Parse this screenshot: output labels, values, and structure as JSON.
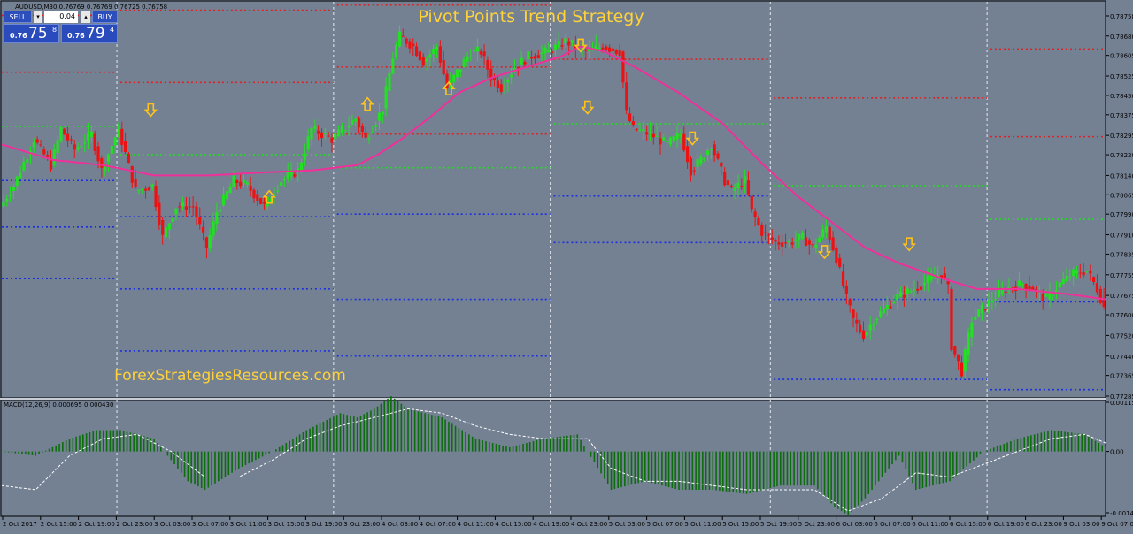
{
  "symbol_header": "AUDUSD,M30  0.76769 0.76769 0.76725 0.76758",
  "title": "Pivot Points Trend Strategy",
  "watermark": "ForexStrategiesResources.com",
  "macd_header": "MACD(12,26,9) 0.000695 0.000430",
  "colors": {
    "background": "#748193",
    "bull_candle": "#22e022",
    "bear_candle": "#ee1111",
    "ema": "#f0309a",
    "resistance": "#e02020",
    "pivot": "#22dd22",
    "support": "#1a2fe0",
    "arrow": "#ffc21a",
    "macd_hist": "#0b6d0b",
    "macd_signal": "#ffffff",
    "title": "#ffd23a"
  },
  "trade_panel": {
    "sell_label": "SELL",
    "buy_label": "BUY",
    "lot_size": "0.04",
    "spin_down": "▾",
    "spin_up": "▴",
    "sell_prefix": "0.76",
    "sell_big": "75",
    "sell_sup": "8",
    "buy_prefix": "0.76",
    "buy_big": "79",
    "buy_sup": "4"
  },
  "chart_data": {
    "type": "candlestick",
    "price_axis": [
      "0.78758",
      "0.78680",
      "0.78605",
      "0.78525",
      "0.78450",
      "0.78375",
      "0.78295",
      "0.78220",
      "0.78140",
      "0.78065",
      "0.77990",
      "0.77910",
      "0.77835",
      "0.77755",
      "0.77675",
      "0.77600",
      "0.77520",
      "0.77440",
      "0.77365",
      "0.77285"
    ],
    "macd_axis": [
      "0.001155",
      "0.00",
      "-0.00144"
    ],
    "time_axis": [
      "2 Oct 2017",
      "2 Oct 15:00",
      "2 Oct 19:00",
      "2 Oct 23:00",
      "3 Oct 03:00",
      "3 Oct 07:00",
      "3 Oct 11:00",
      "3 Oct 15:00",
      "3 Oct 19:00",
      "3 Oct 23:00",
      "4 Oct 03:00",
      "4 Oct 07:00",
      "4 Oct 11:00",
      "4 Oct 15:00",
      "4 Oct 19:00",
      "4 Oct 23:00",
      "5 Oct 03:00",
      "5 Oct 07:00",
      "5 Oct 11:00",
      "5 Oct 15:00",
      "5 Oct 19:00",
      "5 Oct 23:00",
      "6 Oct 03:00",
      "6 Oct 07:00",
      "6 Oct 11:00",
      "6 Oct 15:00",
      "6 Oct 19:00",
      "6 Oct 23:00",
      "9 Oct 03:00",
      "9 Oct 07:00"
    ],
    "day_separators": [
      "2 Oct 23:00",
      "3 Oct 23:00",
      "4 Oct 23:00",
      "5 Oct 23:00",
      "6 Oct 23:00"
    ],
    "price_path": [
      [
        0,
        0.7802
      ],
      [
        8,
        0.781
      ],
      [
        20,
        0.7828
      ],
      [
        30,
        0.7818
      ],
      [
        36,
        0.7832
      ],
      [
        44,
        0.7824
      ],
      [
        54,
        0.783
      ],
      [
        60,
        0.7816
      ],
      [
        70,
        0.7832
      ],
      [
        80,
        0.7808
      ],
      [
        90,
        0.781
      ],
      [
        96,
        0.779
      ],
      [
        104,
        0.7802
      ],
      [
        114,
        0.7802
      ],
      [
        122,
        0.7786
      ],
      [
        128,
        0.78
      ],
      [
        138,
        0.7812
      ],
      [
        146,
        0.781
      ],
      [
        156,
        0.7802
      ],
      [
        166,
        0.7812
      ],
      [
        176,
        0.7816
      ],
      [
        184,
        0.7832
      ],
      [
        196,
        0.7828
      ],
      [
        210,
        0.7836
      ],
      [
        216,
        0.7828
      ],
      [
        226,
        0.784
      ],
      [
        232,
        0.786
      ],
      [
        236,
        0.7868
      ],
      [
        244,
        0.7864
      ],
      [
        250,
        0.7858
      ],
      [
        258,
        0.7864
      ],
      [
        264,
        0.7848
      ],
      [
        272,
        0.7856
      ],
      [
        278,
        0.7862
      ],
      [
        284,
        0.7862
      ],
      [
        290,
        0.7852
      ],
      [
        296,
        0.7848
      ],
      [
        304,
        0.7856
      ],
      [
        312,
        0.786
      ],
      [
        324,
        0.7862
      ],
      [
        334,
        0.7866
      ],
      [
        346,
        0.7862
      ],
      [
        356,
        0.7864
      ],
      [
        366,
        0.7862
      ],
      [
        370,
        0.7838
      ],
      [
        374,
        0.7832
      ],
      [
        384,
        0.783
      ],
      [
        394,
        0.7826
      ],
      [
        402,
        0.783
      ],
      [
        408,
        0.7816
      ],
      [
        414,
        0.782
      ],
      [
        420,
        0.7826
      ],
      [
        428,
        0.7812
      ],
      [
        432,
        0.7808
      ],
      [
        440,
        0.7812
      ],
      [
        444,
        0.78
      ],
      [
        450,
        0.7792
      ],
      [
        458,
        0.7788
      ],
      [
        466,
        0.7788
      ],
      [
        474,
        0.779
      ],
      [
        480,
        0.7786
      ],
      [
        488,
        0.7794
      ],
      [
        494,
        0.7782
      ],
      [
        500,
        0.7766
      ],
      [
        504,
        0.7758
      ],
      [
        510,
        0.7752
      ],
      [
        516,
        0.7758
      ],
      [
        522,
        0.7762
      ],
      [
        530,
        0.7767
      ],
      [
        540,
        0.777
      ],
      [
        550,
        0.7774
      ],
      [
        556,
        0.7776
      ],
      [
        560,
        0.777
      ],
      [
        562,
        0.7748
      ],
      [
        568,
        0.7738
      ],
      [
        574,
        0.7758
      ],
      [
        580,
        0.7762
      ],
      [
        586,
        0.7766
      ],
      [
        594,
        0.777
      ],
      [
        604,
        0.7772
      ],
      [
        610,
        0.777
      ],
      [
        618,
        0.7766
      ],
      [
        626,
        0.7772
      ],
      [
        634,
        0.7776
      ],
      [
        642,
        0.7777
      ],
      [
        648,
        0.777
      ],
      [
        652,
        0.7763
      ]
    ],
    "ema_path": [
      [
        0,
        0.7826
      ],
      [
        30,
        0.782
      ],
      [
        60,
        0.7818
      ],
      [
        90,
        0.7814
      ],
      [
        122,
        0.7814
      ],
      [
        150,
        0.7815
      ],
      [
        184,
        0.7816
      ],
      [
        210,
        0.7818
      ],
      [
        222,
        0.7822
      ],
      [
        236,
        0.7828
      ],
      [
        252,
        0.7836
      ],
      [
        270,
        0.7846
      ],
      [
        290,
        0.7852
      ],
      [
        310,
        0.7856
      ],
      [
        330,
        0.786
      ],
      [
        342,
        0.7864
      ],
      [
        356,
        0.7862
      ],
      [
        374,
        0.7856
      ],
      [
        400,
        0.7846
      ],
      [
        426,
        0.7834
      ],
      [
        450,
        0.7818
      ],
      [
        470,
        0.7806
      ],
      [
        490,
        0.7796
      ],
      [
        510,
        0.7786
      ],
      [
        530,
        0.778
      ],
      [
        556,
        0.7774
      ],
      [
        576,
        0.777
      ],
      [
        600,
        0.777
      ],
      [
        630,
        0.7768
      ],
      [
        652,
        0.7766
      ]
    ],
    "pivot_segments": [
      {
        "from": 0,
        "to": 68,
        "levels": [
          0.7876,
          0.7854,
          0.7833,
          0.7812,
          0.7794,
          0.7774
        ]
      },
      {
        "from": 70,
        "to": 196,
        "levels": [
          0.7878,
          0.785,
          0.7822,
          0.7798,
          0.777,
          0.7746
        ]
      },
      {
        "from": 198,
        "to": 324,
        "levels": [
          0.788,
          0.7856,
          0.783,
          0.7817,
          0.7799,
          0.7766,
          0.7744
        ]
      },
      {
        "from": 326,
        "to": 454,
        "levels": [
          0.7884,
          0.7859,
          0.7834,
          0.7806,
          0.7788
        ]
      },
      {
        "from": 456,
        "to": 582,
        "levels": [
          0.7844,
          0.781,
          0.7766,
          0.7735
        ]
      },
      {
        "from": 584,
        "to": 652,
        "levels": [
          0.7863,
          0.7829,
          0.7797,
          0.7765,
          0.7731
        ]
      }
    ],
    "arrows": [
      {
        "t": 88,
        "dir": "down",
        "y": 0.7839
      },
      {
        "t": 158,
        "dir": "up",
        "y": 0.7806
      },
      {
        "t": 216,
        "dir": "up",
        "y": 0.7842
      },
      {
        "t": 264,
        "dir": "up",
        "y": 0.7848
      },
      {
        "t": 342,
        "dir": "down",
        "y": 0.7864
      },
      {
        "t": 346,
        "dir": "down",
        "y": 0.784
      },
      {
        "t": 408,
        "dir": "down",
        "y": 0.7828
      },
      {
        "t": 486,
        "dir": "down",
        "y": 0.7784
      },
      {
        "t": 536,
        "dir": "down",
        "y": 0.7787
      }
    ],
    "macd_hist_path": [
      [
        0,
        0.0
      ],
      [
        20,
        -0.0001
      ],
      [
        40,
        0.0003
      ],
      [
        56,
        0.0005
      ],
      [
        70,
        0.0005
      ],
      [
        90,
        0.0003
      ],
      [
        110,
        -0.0007
      ],
      [
        120,
        -0.0009
      ],
      [
        140,
        -0.0004
      ],
      [
        160,
        0.0
      ],
      [
        180,
        0.0005
      ],
      [
        200,
        0.0009
      ],
      [
        210,
        0.0008
      ],
      [
        220,
        0.001
      ],
      [
        230,
        0.0013
      ],
      [
        240,
        0.001
      ],
      [
        260,
        0.0008
      ],
      [
        280,
        0.0003
      ],
      [
        300,
        0.0001
      ],
      [
        320,
        0.0003
      ],
      [
        340,
        0.0004
      ],
      [
        346,
        0.0
      ],
      [
        360,
        -0.0009
      ],
      [
        380,
        -0.0007
      ],
      [
        400,
        -0.0009
      ],
      [
        420,
        -0.0009
      ],
      [
        440,
        -0.001
      ],
      [
        460,
        -0.0008
      ],
      [
        480,
        -0.0008
      ],
      [
        492,
        -0.0013
      ],
      [
        500,
        -0.0015
      ],
      [
        510,
        -0.0011
      ],
      [
        530,
        -0.0001
      ],
      [
        540,
        -0.0009
      ],
      [
        560,
        -0.0007
      ],
      [
        580,
        0.0
      ],
      [
        600,
        0.0003
      ],
      [
        620,
        0.0005
      ],
      [
        640,
        0.0004
      ],
      [
        652,
        0.0001
      ]
    ],
    "macd_signal_path": [
      [
        0,
        -0.0008
      ],
      [
        20,
        -0.0009
      ],
      [
        40,
        -0.0001
      ],
      [
        60,
        0.0003
      ],
      [
        80,
        0.0004
      ],
      [
        100,
        0.0
      ],
      [
        120,
        -0.0006
      ],
      [
        140,
        -0.0006
      ],
      [
        160,
        -0.0002
      ],
      [
        180,
        0.0003
      ],
      [
        200,
        0.0006
      ],
      [
        220,
        0.0008
      ],
      [
        240,
        0.001
      ],
      [
        260,
        0.0009
      ],
      [
        280,
        0.0006
      ],
      [
        300,
        0.0004
      ],
      [
        320,
        0.0003
      ],
      [
        346,
        0.0003
      ],
      [
        360,
        -0.0004
      ],
      [
        380,
        -0.0007
      ],
      [
        400,
        -0.0007
      ],
      [
        420,
        -0.0008
      ],
      [
        440,
        -0.0009
      ],
      [
        460,
        -0.0009
      ],
      [
        480,
        -0.0009
      ],
      [
        500,
        -0.0014
      ],
      [
        520,
        -0.0011
      ],
      [
        540,
        -0.0005
      ],
      [
        560,
        -0.0006
      ],
      [
        580,
        -0.0003
      ],
      [
        600,
        0.0
      ],
      [
        620,
        0.0003
      ],
      [
        640,
        0.0004
      ],
      [
        652,
        0.0002
      ]
    ]
  }
}
